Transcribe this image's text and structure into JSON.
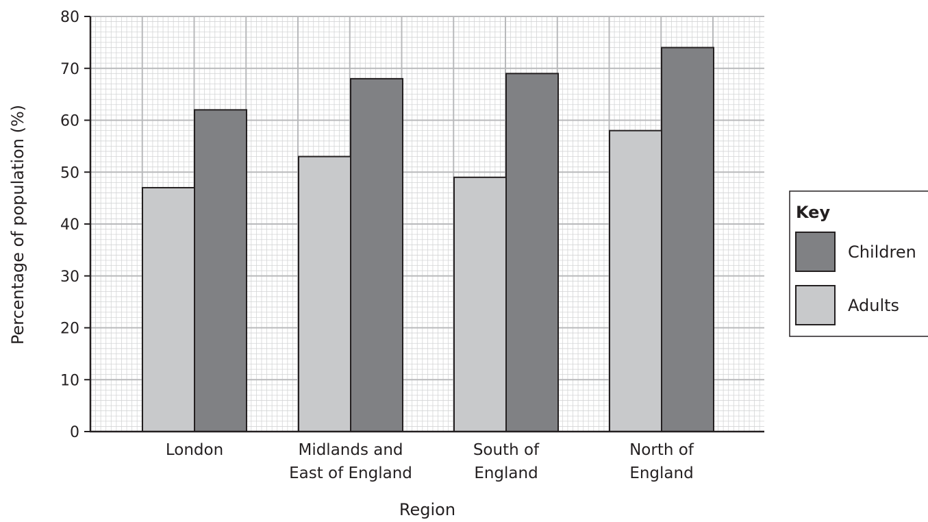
{
  "chart_data": {
    "type": "bar",
    "title": "",
    "xlabel": "Region",
    "ylabel": "Percentage of population (%)",
    "ylim": [
      0,
      80
    ],
    "ytick_step": 10,
    "minor_grid_step": 1,
    "grid": true,
    "legend_position": "right",
    "categories": [
      [
        "London"
      ],
      [
        "Midlands and",
        "East of England"
      ],
      [
        "South of",
        "England"
      ],
      [
        "North of",
        "England"
      ]
    ],
    "series": [
      {
        "name": "Adults",
        "values": [
          47,
          53,
          49,
          58
        ],
        "color": "#c8c9cb"
      },
      {
        "name": "Children",
        "values": [
          62,
          68,
          69,
          74
        ],
        "color": "#808184"
      }
    ],
    "legend": {
      "title": "Key",
      "order": [
        "Children",
        "Adults"
      ]
    }
  }
}
